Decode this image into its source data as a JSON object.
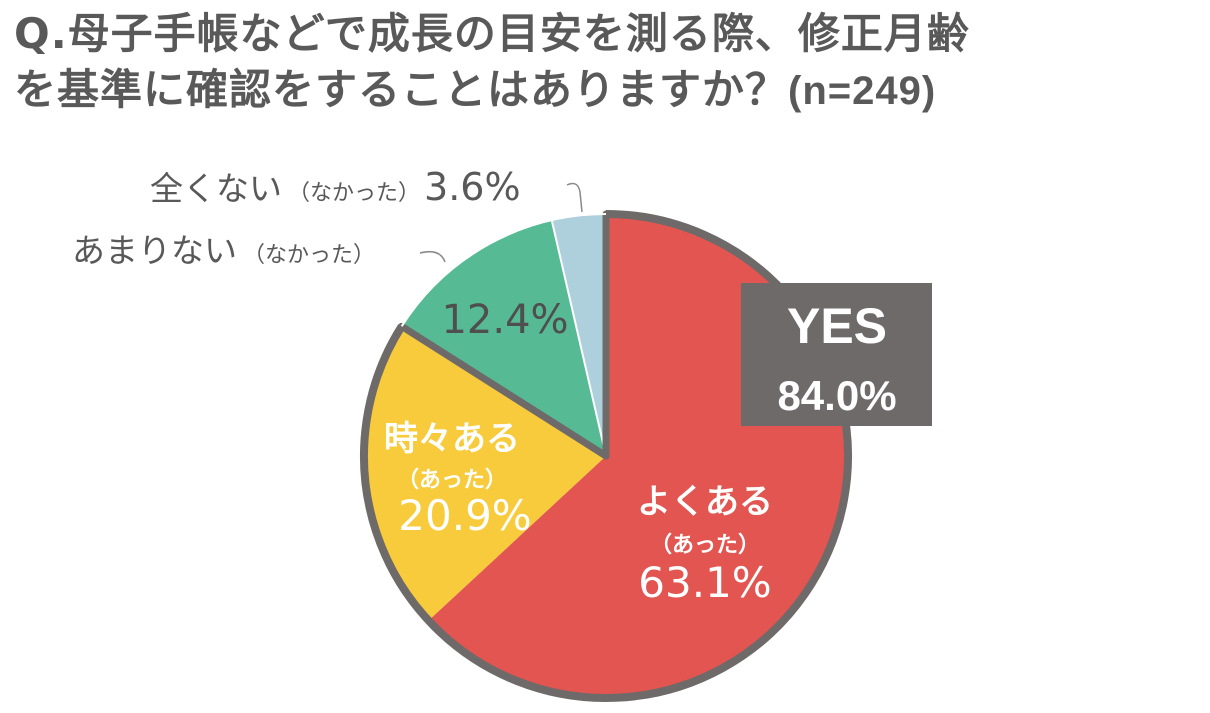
{
  "title": {
    "line1": "Q.母子手帳などで成長の目安を測る際、修正月齢",
    "line2": "を基準に確認をすることはありますか？",
    "n_label": "(n=249)"
  },
  "colors": {
    "yoku": "#e35550",
    "tokidoki": "#f7cb3c",
    "amari": "#56bb95",
    "mattaku": "#aed0dc",
    "border": "#6e6a69",
    "yes_box": "#6e6a69"
  },
  "yes_box": {
    "label": "YES",
    "value": "84.0%"
  },
  "chart_data": {
    "type": "pie",
    "title": "Q.母子手帳などで成長の目安を測る際、修正月齢を基準に確認をすることはありますか？(n=249)",
    "slices": [
      {
        "name": "よくある",
        "sub": "（あった）",
        "value": 63.1,
        "label": "63.1%",
        "color": "#e35550"
      },
      {
        "name": "時々ある",
        "sub": "（あった）",
        "value": 20.9,
        "label": "20.9%",
        "color": "#f7cb3c"
      },
      {
        "name": "あまりない",
        "sub": "（なかった）",
        "value": 12.4,
        "label": "12.4%",
        "color": "#56bb95"
      },
      {
        "name": "全くない",
        "sub": "（なかった）",
        "value": 3.6,
        "label": "3.6%",
        "color": "#aed0dc"
      }
    ],
    "group": {
      "label": "YES",
      "value": 84.0,
      "text": "84.0%"
    }
  }
}
